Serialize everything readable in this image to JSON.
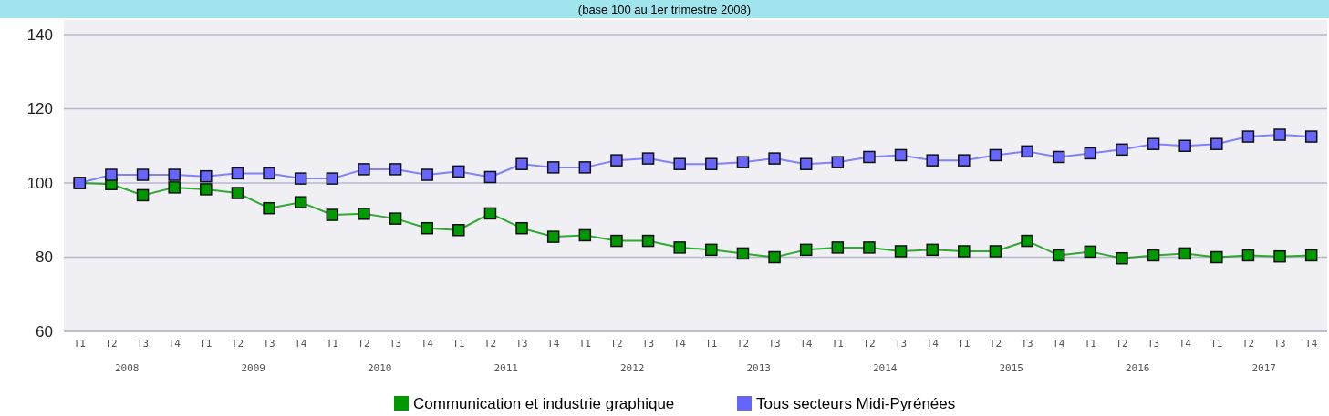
{
  "chart_data": {
    "type": "line",
    "title": "(base 100 au 1er trimestre 2008)",
    "categories": [
      "T1",
      "T2",
      "T3",
      "T4",
      "T1",
      "T2",
      "T3",
      "T4",
      "T1",
      "T2",
      "T3",
      "T4",
      "T1",
      "T2",
      "T3",
      "T4",
      "T1",
      "T2",
      "T3",
      "T4",
      "T1",
      "T2",
      "T3",
      "T4",
      "T1",
      "T2",
      "T3",
      "T4",
      "T1",
      "T2",
      "T3",
      "T4",
      "T1",
      "T2",
      "T3",
      "T4",
      "T1",
      "T2",
      "T3",
      "T4"
    ],
    "annotations": [
      "2008",
      "2009",
      "2010",
      "2011",
      "2012",
      "2013",
      "2014",
      "2015",
      "2016",
      "2017"
    ],
    "series": [
      {
        "name": "Communication et industrie graphique",
        "color": "#009900",
        "values": [
          100,
          99.7,
          96.7,
          98.8,
          98.3,
          97.3,
          93.2,
          94.8,
          91.4,
          91.7,
          90.4,
          87.8,
          87.3,
          91.8,
          87.8,
          85.5,
          85.9,
          84.4,
          84.4,
          82.6,
          82,
          81,
          80,
          82,
          82.6,
          82.6,
          81.6,
          82,
          81.6,
          81.6,
          84.4,
          80.5,
          81.5,
          79.7,
          80.5,
          81,
          80,
          80.5,
          80.2,
          80.5
        ]
      },
      {
        "name": "Tous secteurs Midi-Pyrénées",
        "color": "#6666ff",
        "values": [
          100,
          102.2,
          102.2,
          102.2,
          101.8,
          102.6,
          102.6,
          101.2,
          101.2,
          103.7,
          103.7,
          102.2,
          103.1,
          101.6,
          105.1,
          104.2,
          104.2,
          106.1,
          106.6,
          105.1,
          105.1,
          105.6,
          106.6,
          105.1,
          105.6,
          107,
          107.5,
          106.1,
          106.1,
          107.5,
          108.5,
          107,
          108,
          109,
          110.5,
          110,
          110.5,
          112.5,
          113,
          112.5
        ]
      }
    ],
    "ylim": [
      60,
      140
    ],
    "yticks": [
      60,
      80,
      100,
      120,
      140
    ],
    "grid": "y",
    "legend": "bottom",
    "marker": "square",
    "line_style": "solid"
  }
}
